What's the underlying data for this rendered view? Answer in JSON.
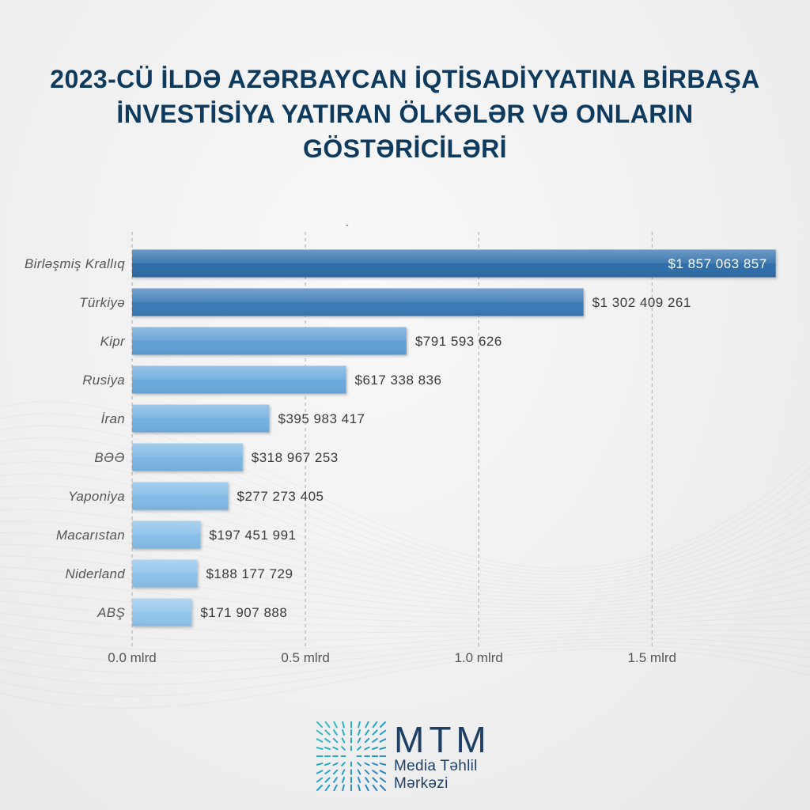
{
  "colors": {
    "background": "#efefef",
    "title": "#0e3a5e",
    "category_label": "#555555",
    "value_label": "#3a3a3a",
    "value_label_inside": "#ffffff",
    "gridline": "#a8a8a8",
    "axis_label": "#555555",
    "annotation": "#333333"
  },
  "chart_data": {
    "type": "bar",
    "orientation": "horizontal",
    "title": [
      "2023-CÜ İLDƏ AZƏRBAYCAN İQTİSADİYYATINA BİRBAŞA",
      "İNVESTİSİYA YATIRAN ÖLKƏLƏR VƏ ONLARIN",
      "GÖSTƏRİCİLƏRİ"
    ],
    "categories": [
      "Birləşmiş Krallıq",
      "Türkiyə",
      "Kipr",
      "Rusiya",
      "İran",
      "BƏƏ",
      "Yaponiya",
      "Macarıstan",
      "Niderland",
      "ABŞ"
    ],
    "values": [
      1857063857,
      1302409261,
      791593626,
      617338836,
      395983417,
      318967253,
      277273405,
      197451991,
      188177729,
      171907888
    ],
    "value_labels": [
      "$1 857 063 857",
      "$1 302 409 261",
      "$791 593 626",
      "$617 338 836",
      "$395 983 417",
      "$318 967 253",
      "$277 273 405",
      "$197 451 991",
      "$188 177 729",
      "$171 907 888"
    ],
    "x_ticks": [
      0,
      500000000,
      1000000000,
      1500000000
    ],
    "x_tick_labels": [
      "0.0 mlrd",
      "0.5 mlrd",
      "1.0 mlrd",
      "1.5 mlrd"
    ],
    "xlim": [
      0,
      1860000000
    ],
    "grid": true,
    "grid_style": "dashed",
    "legend": "none",
    "bar_colors": [
      "#2f6ea9",
      "#3a7ab5",
      "#5f9fd4",
      "#6aa9dc",
      "#72b0e0",
      "#7ab6e4",
      "#80bae6",
      "#86bee8",
      "#8bc2ea",
      "#90c5eb"
    ],
    "annotations": [
      "-"
    ]
  },
  "logo": {
    "name": "MTM",
    "line1": "Media Təhlil",
    "line2": "Mərkəzi",
    "icon": "mtm-starburst-icon",
    "color": "#1e3f66",
    "icon_colors": [
      "#27c4c4",
      "#2a7cc4"
    ]
  }
}
